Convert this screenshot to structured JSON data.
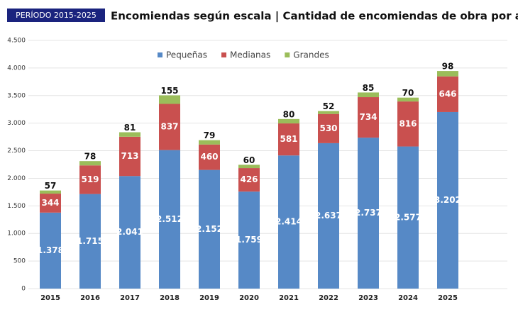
{
  "chart_data": {
    "type": "stacked_bar",
    "period": "PERÍODO 2015-2025",
    "title": "Encomiendas según escala | Cantidad de encomiendas de obra por año",
    "categories": [
      "2015",
      "2016",
      "2017",
      "2018",
      "2019",
      "2020",
      "2021",
      "2022",
      "2023",
      "2024",
      "2025"
    ],
    "series": [
      {
        "name": "Pequeñas",
        "color": "#5689c6",
        "values": [
          1378,
          1715,
          2041,
          2512,
          2152,
          1759,
          2414,
          2637,
          2737,
          2577,
          3202
        ],
        "value_labels": [
          "1.378",
          "1.715",
          "2.041",
          "2.512",
          "2.152",
          "1.759",
          "2.414",
          "2.637",
          "2.737",
          "2.577",
          "3.202"
        ]
      },
      {
        "name": "Medianas",
        "color": "#c9504f",
        "values": [
          344,
          519,
          713,
          837,
          460,
          426,
          581,
          530,
          734,
          816,
          646
        ]
      },
      {
        "name": "Grandes",
        "color": "#9bbd5a",
        "values": [
          57,
          78,
          81,
          155,
          79,
          60,
          80,
          52,
          85,
          70,
          98
        ]
      }
    ],
    "ylim": [
      0,
      4500
    ],
    "yticks": [
      0,
      500,
      {
        "value": 1000,
        "label": "1.000"
      },
      {
        "value": 1500,
        "label": "1.500"
      },
      {
        "value": 2000,
        "label": "2.000"
      },
      {
        "value": 2500,
        "label": "2.500"
      },
      {
        "value": 3000,
        "label": "3.000"
      },
      {
        "value": 3500,
        "label": "3.500"
      },
      {
        "value": 4000,
        "label": "4.000"
      },
      {
        "value": 4500,
        "label": "4.500"
      }
    ],
    "grid": true,
    "legend": "top"
  }
}
